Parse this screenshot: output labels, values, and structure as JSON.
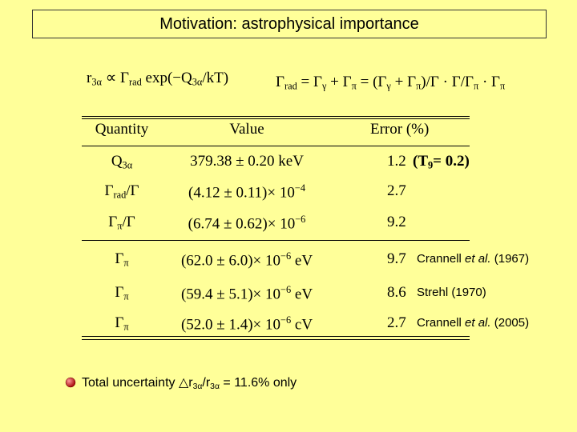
{
  "header": {
    "title": "Motivation: astrophysical importance"
  },
  "formulas": [
    [
      "r",
      "3α",
      " ∝ Γ",
      "rad",
      " exp(−Q",
      "3α",
      "/kT)"
    ],
    [
      "Γ",
      "rad",
      " = Γ",
      "γ",
      " + Γ",
      "π",
      " = (Γ",
      "γ",
      " + Γ",
      "π",
      ")/Γ · Γ/Γ",
      "π",
      " · Γ",
      "π"
    ]
  ],
  "table": {
    "headers": [
      "Quantity",
      "Value",
      "Error (%)"
    ],
    "rows": [
      {
        "quantity": [
          "Q",
          "3α"
        ],
        "value": [
          "379.38 ± 0.20 keV"
        ],
        "error": "1.2",
        "note": [
          "(T",
          "9",
          "= 0.2)"
        ]
      },
      {
        "quantity": [
          "Γ",
          "rad",
          "/Γ"
        ],
        "value": [
          "(4.12 ± 0.11)× 10",
          "−4"
        ],
        "error": "2.7"
      },
      {
        "quantity": [
          "Γ",
          "π",
          "/Γ"
        ],
        "value": [
          "(6.74 ± 0.62)× 10",
          "−6"
        ],
        "error": "9.2"
      },
      {
        "quantity": [
          "Γ",
          "π"
        ],
        "value": [
          "(62.0 ± 6.0)× 10",
          "−6",
          " eV"
        ],
        "error": "9.7",
        "citation": [
          "Crannell ",
          "et al.",
          " (1967)"
        ]
      },
      {
        "quantity": [
          "Γ",
          "π"
        ],
        "value": [
          "(59.4 ± 5.1)× 10",
          "−6",
          " eV"
        ],
        "error": "8.6",
        "citation": [
          "Strehl (1970)"
        ]
      },
      {
        "quantity": [
          "Γ",
          "π"
        ],
        "value": [
          "(52.0 ± 1.4)× 10",
          "−6",
          " cV"
        ],
        "error": "2.7",
        "citation": [
          "Crannell ",
          "et al.",
          " (2005)"
        ]
      }
    ]
  },
  "bullet": [
    "Total uncertainty  △r",
    "3α",
    "/r",
    "3α",
    " = 11.6% only"
  ]
}
